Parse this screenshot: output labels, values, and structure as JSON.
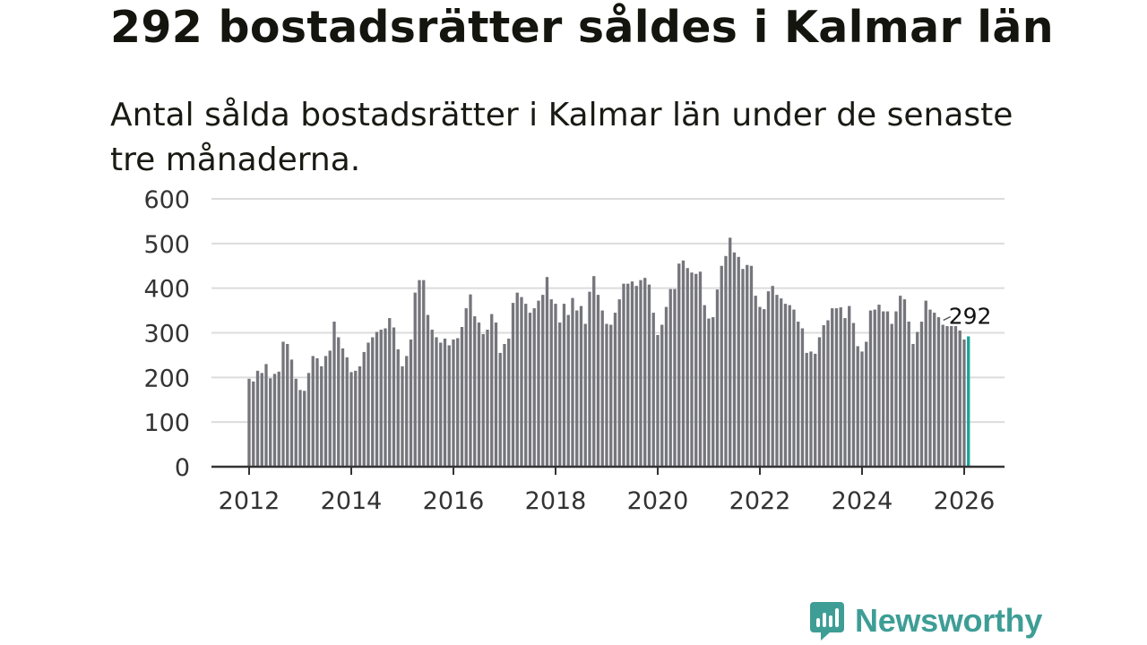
{
  "header": {
    "title": "292 bostadsrätter såldes i Kalmar län",
    "subtitle": "Antal sålda bostadsrätter i Kalmar län under de senaste tre månaderna."
  },
  "colors": {
    "bar": "#75757c",
    "highlight": "#1aa398",
    "grid": "#dcdcdc",
    "axis": "#333333",
    "text": "#333333",
    "logo": "#3e9e96"
  },
  "brand": {
    "name": "Newsworthy"
  },
  "chart_data": {
    "type": "bar",
    "title": "292 bostadsrätter såldes i Kalmar län",
    "subtitle": "Antal sålda bostadsrätter i Kalmar län under de senaste tre månaderna.",
    "xlabel": "",
    "ylabel": "",
    "grid": true,
    "x_start": 2012.0,
    "x_step": 0.08333,
    "xlim": [
      2011.5,
      2026.75
    ],
    "ylim": [
      0,
      600
    ],
    "yticks": [
      0,
      100,
      200,
      300,
      400,
      500,
      600
    ],
    "xticks": [
      2012,
      2014,
      2016,
      2018,
      2020,
      2022,
      2024,
      2026
    ],
    "values": [
      197,
      191,
      215,
      210,
      230,
      198,
      208,
      213,
      280,
      275,
      240,
      197,
      172,
      170,
      210,
      248,
      243,
      225,
      248,
      260,
      325,
      290,
      265,
      245,
      212,
      215,
      225,
      257,
      278,
      290,
      302,
      307,
      310,
      333,
      312,
      263,
      225,
      248,
      285,
      390,
      418,
      418,
      340,
      307,
      290,
      278,
      287,
      272,
      285,
      288,
      313,
      355,
      386,
      337,
      323,
      297,
      307,
      342,
      323,
      255,
      275,
      287,
      367,
      390,
      380,
      365,
      345,
      355,
      372,
      385,
      425,
      375,
      365,
      323,
      365,
      340,
      378,
      350,
      360,
      320,
      392,
      427,
      385,
      350,
      320,
      318,
      345,
      375,
      410,
      410,
      415,
      405,
      418,
      423,
      408,
      345,
      295,
      318,
      358,
      398,
      398,
      455,
      462,
      445,
      435,
      432,
      437,
      362,
      332,
      335,
      397,
      450,
      472,
      513,
      480,
      470,
      443,
      452,
      450,
      383,
      358,
      353,
      393,
      405,
      385,
      377,
      365,
      362,
      352,
      325,
      310,
      255,
      258,
      253,
      290,
      317,
      328,
      355,
      355,
      357,
      333,
      360,
      322,
      270,
      258,
      280,
      350,
      352,
      363,
      348,
      348,
      320,
      348,
      383,
      375,
      325,
      275,
      302,
      325,
      372,
      352,
      345,
      335,
      318,
      315,
      315,
      315,
      305,
      285,
      292
    ],
    "highlight_last": true,
    "annotation": {
      "label": "292",
      "value": 292
    }
  }
}
